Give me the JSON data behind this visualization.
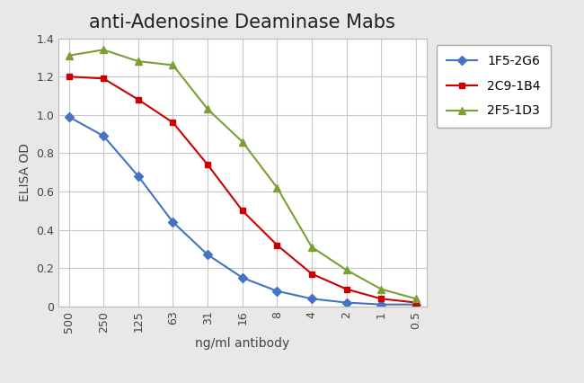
{
  "title": "anti-Adenosine Deaminase Mabs",
  "xlabel": "ng/ml antibody",
  "ylabel": "ELISA OD",
  "x_labels": [
    "500",
    "250",
    "125",
    "63",
    "31",
    "16",
    "8",
    "4",
    "2",
    "1",
    "0.5"
  ],
  "x_positions": [
    0,
    1,
    2,
    3,
    4,
    5,
    6,
    7,
    8,
    9,
    10
  ],
  "series": [
    {
      "label": "1F5-2G6",
      "color": "#4472C4",
      "marker": "D",
      "marker_size": 5,
      "values": [
        0.99,
        0.89,
        0.68,
        0.44,
        0.27,
        0.15,
        0.08,
        0.04,
        0.02,
        0.01,
        0.01
      ]
    },
    {
      "label": "2C9-1B4",
      "color": "#CC0000",
      "marker": "s",
      "marker_size": 5,
      "values": [
        1.2,
        1.19,
        1.08,
        0.96,
        0.74,
        0.5,
        0.32,
        0.17,
        0.09,
        0.04,
        0.02
      ]
    },
    {
      "label": "2F5-1D3",
      "color": "#7B9F35",
      "marker": "^",
      "marker_size": 6,
      "values": [
        1.31,
        1.34,
        1.28,
        1.26,
        1.03,
        0.86,
        0.62,
        0.31,
        0.19,
        0.09,
        0.04
      ]
    }
  ],
  "ylim": [
    0,
    1.4
  ],
  "yticks": [
    0,
    0.2,
    0.4,
    0.6,
    0.8,
    1.0,
    1.2,
    1.4
  ],
  "figure_bg_color": "#e8e8e8",
  "plot_bg_color": "#ffffff",
  "grid_color": "#c8c8c8",
  "title_fontsize": 15,
  "axis_label_fontsize": 10,
  "tick_fontsize": 9,
  "legend_fontsize": 10,
  "line_width": 1.5
}
